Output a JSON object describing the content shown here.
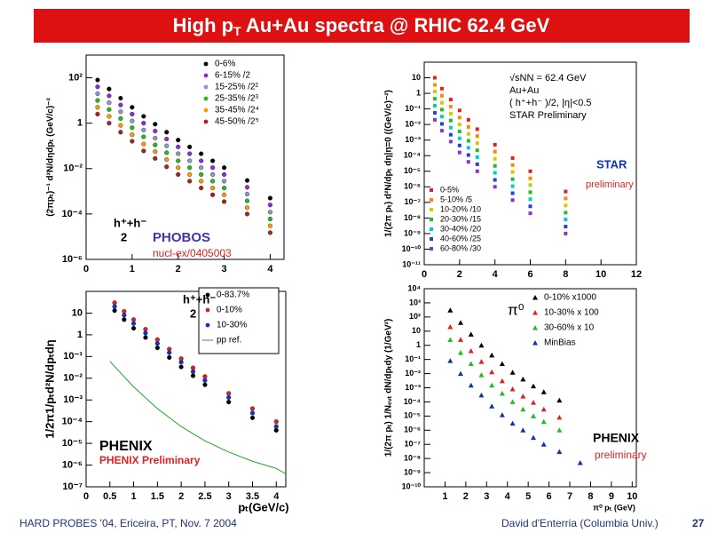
{
  "title": {
    "pre": "High p",
    "sub": "T",
    "post": " Au+Au spectra @ RHIC 62.4 GeV"
  },
  "footer": {
    "left": "HARD PROBES '04, Ericeira, PT, Nov. 7 2004",
    "right": "David d'Enterria (Columbia Univ.)",
    "page": "27"
  },
  "chart_data": [
    {
      "type": "scatter",
      "yscale": "log",
      "marker": "circle",
      "legend": "upper right",
      "ylabel": "(2πpₜ)⁻¹ d²N/dηdpₜ (GeV/c)⁻²",
      "annotations": [
        "h⁺+h⁻",
        "2",
        "PHOBOS",
        "nucl-ex/0405003"
      ],
      "xlim": [
        0,
        4.3
      ],
      "xticks": [
        0,
        1,
        2,
        3,
        4
      ],
      "ylim": [
        1e-06,
        1000
      ],
      "yticks": [
        {
          "value": 100,
          "label": "10²"
        },
        1,
        {
          "value": 0.01,
          "label": "10⁻²"
        },
        {
          "value": 0.0001,
          "label": "10⁻⁴"
        },
        {
          "value": 1e-06,
          "label": "10⁻⁶"
        }
      ],
      "x": [
        0.25,
        0.5,
        0.75,
        1.0,
        1.25,
        1.5,
        1.75,
        2.0,
        2.25,
        2.5,
        2.75,
        3.0,
        3.5,
        4.0
      ],
      "series": [
        {
          "name": "0-6%",
          "color": "#000000",
          "values": [
            80,
            32,
            12.6,
            5,
            2,
            0.9,
            0.4,
            0.18,
            0.09,
            0.045,
            0.022,
            0.011,
            0.003,
            0.0005
          ]
        },
        {
          "name": "6-15%   /2",
          "color": "#8a2be2",
          "values": [
            40,
            16,
            6.3,
            2.5,
            1,
            0.45,
            0.2,
            0.09,
            0.045,
            0.022,
            0.011,
            0.0055,
            0.0015,
            0.00025
          ]
        },
        {
          "name": "15-25% /2²",
          "color": "#8899cc",
          "values": [
            20,
            8,
            3.2,
            1.25,
            0.5,
            0.22,
            0.1,
            0.045,
            0.022,
            0.011,
            0.0055,
            0.0028,
            0.00075,
            0.00012
          ]
        },
        {
          "name": "25-35% /2³",
          "color": "#22bb22",
          "values": [
            10,
            4,
            1.6,
            0.63,
            0.25,
            0.11,
            0.05,
            0.022,
            0.011,
            0.0055,
            0.0028,
            0.0014,
            0.00038,
            6e-05
          ]
        },
        {
          "name": "35-45% /2⁴",
          "color": "#ff9900",
          "values": [
            5,
            2,
            0.8,
            0.31,
            0.12,
            0.056,
            0.025,
            0.011,
            0.0055,
            0.0028,
            0.0014,
            0.0007,
            0.00019,
            3e-05
          ]
        },
        {
          "name": "45-50% /2⁵",
          "color": "#aa2222",
          "values": [
            2.5,
            1,
            0.4,
            0.16,
            0.06,
            0.028,
            0.012,
            0.0055,
            0.0028,
            0.0014,
            0.0007,
            0.00035,
            0.0001,
            1.5e-05
          ]
        }
      ]
    },
    {
      "type": "scatter",
      "yscale": "log",
      "marker": "square",
      "legend": "lower left",
      "ylabel": "1/(2π pₜ)  d²N/dpₜ dη|η=0 ((GeV/c)⁻²)",
      "annotations": [
        "√sNN = 62.4 GeV",
        "Au+Au",
        "( h⁺+h⁻ )/2, |η|<0.5",
        "STAR Preliminary",
        "STAR",
        "preliminary"
      ],
      "xlim": [
        0,
        12
      ],
      "xticks": [
        0,
        2,
        4,
        6,
        8,
        10,
        12
      ],
      "ylim": [
        1e-11,
        100
      ],
      "yticks": [
        10,
        1,
        {
          "value": 0.1,
          "label": "10⁻¹"
        },
        {
          "value": 0.01,
          "label": "10⁻²"
        },
        {
          "value": 0.001,
          "label": "10⁻³"
        },
        {
          "value": 0.0001,
          "label": "10⁻⁴"
        },
        {
          "value": 1e-05,
          "label": "10⁻⁵"
        },
        {
          "value": 1e-06,
          "label": "10⁻⁶"
        },
        {
          "value": 1e-07,
          "label": "10⁻⁷"
        },
        {
          "value": 1e-08,
          "label": "10⁻⁸"
        },
        {
          "value": 1e-09,
          "label": "10⁻⁹"
        },
        {
          "value": 1e-10,
          "label": "10⁻¹⁰"
        },
        {
          "value": 1e-11,
          "label": "10⁻¹¹"
        }
      ],
      "x": [
        0.6,
        1,
        1.5,
        2,
        2.5,
        3,
        4,
        5,
        6,
        8
      ],
      "series": [
        {
          "name": "0-5%",
          "color": "#dd2222",
          "values": [
            10,
            2,
            0.4,
            0.08,
            0.02,
            0.005,
            0.0005,
            7e-05,
            1e-05,
            5e-07
          ]
        },
        {
          "name": "5-10% /5",
          "color": "#ff8800",
          "values": [
            3.5,
            0.7,
            0.14,
            0.028,
            0.007,
            0.0018,
            0.00018,
            2.5e-05,
            3.5e-06,
            1.8e-07
          ]
        },
        {
          "name": "10-20% /10",
          "color": "#cccc00",
          "values": [
            1.3,
            0.25,
            0.05,
            0.01,
            0.0025,
            0.00063,
            6.3e-05,
            9e-06,
            1.3e-06,
            6.3e-08
          ]
        },
        {
          "name": "20-30% /15",
          "color": "#22bb22",
          "values": [
            0.45,
            0.09,
            0.018,
            0.0036,
            0.0009,
            0.00022,
            2.2e-05,
            3.1e-06,
            4.5e-07,
            2.2e-08
          ]
        },
        {
          "name": "30-40% /20",
          "color": "#00cccc",
          "values": [
            0.16,
            0.032,
            0.0063,
            0.0013,
            0.00032,
            8e-05,
            8e-06,
            1.1e-06,
            1.6e-07,
            8e-09
          ]
        },
        {
          "name": "40-60% /25",
          "color": "#2244cc",
          "values": [
            0.056,
            0.011,
            0.0022,
            0.00045,
            0.00011,
            2.8e-05,
            2.8e-06,
            3.9e-07,
            5.6e-08,
            2.8e-09
          ]
        },
        {
          "name": "60-80% /30",
          "color": "#8833cc",
          "values": [
            0.02,
            0.004,
            0.0008,
            0.00016,
            4e-05,
            1e-05,
            1e-06,
            1.4e-07,
            2e-08,
            1e-09
          ]
        }
      ]
    },
    {
      "type": "scatter",
      "yscale": "log",
      "marker": "circle",
      "legend": "upper right",
      "ylabel": "1/2π1/pₜd²N/dpₜdη",
      "xlabel": "pₜ(GeV/c)",
      "annotations": [
        "h⁺+h⁻",
        "2",
        "PHENIX",
        "PHENIX Preliminary"
      ],
      "xlim": [
        0,
        4.2
      ],
      "xticks": [
        0,
        0.5,
        1,
        1.5,
        2,
        2.5,
        3,
        3.5,
        4
      ],
      "ylim": [
        1e-07,
        100
      ],
      "yticks": [
        10,
        1,
        {
          "value": 0.1,
          "label": "10⁻¹"
        },
        {
          "value": 0.01,
          "label": "10⁻²"
        },
        {
          "value": 0.001,
          "label": "10⁻³"
        },
        {
          "value": 0.0001,
          "label": "10⁻⁴"
        },
        {
          "value": 1e-05,
          "label": "10⁻⁵"
        },
        {
          "value": 1e-06,
          "label": "10⁻⁶"
        },
        {
          "value": 1e-07,
          "label": "10⁻⁷"
        }
      ],
      "x": [
        0.6,
        0.8,
        1.0,
        1.25,
        1.5,
        1.75,
        2.0,
        2.25,
        2.5,
        3.0,
        3.5,
        4.0
      ],
      "series": [
        {
          "name": "0-83.7%",
          "color": "#000000",
          "values": [
            13,
            5,
            2,
            0.75,
            0.25,
            0.09,
            0.033,
            0.013,
            0.005,
            0.0008,
            0.00015,
            4e-05
          ]
        },
        {
          "name": "0-10%",
          "color": "#dd2222",
          "values": [
            30,
            12,
            5,
            1.8,
            0.6,
            0.22,
            0.08,
            0.03,
            0.012,
            0.002,
            0.0004,
            0.0001
          ]
        },
        {
          "name": "10-30%",
          "color": "#1133cc",
          "values": [
            20,
            8,
            3.3,
            1.2,
            0.4,
            0.15,
            0.055,
            0.02,
            0.008,
            0.0013,
            0.00025,
            6e-05
          ]
        },
        {
          "name": "pp ref.",
          "color": "#22aa22",
          "style": "line",
          "x": [
            0.5,
            1,
            1.5,
            2,
            2.5,
            3,
            3.5,
            4,
            4.2
          ],
          "values": [
            0.06,
            0.004,
            0.0004,
            6e-05,
            1.3e-05,
            4e-06,
            1.5e-06,
            7e-07,
            4e-07
          ]
        }
      ]
    },
    {
      "type": "scatter",
      "yscale": "log",
      "marker": "triangle",
      "legend": "upper right",
      "ylabel": "1/(2π pₜ) 1/Nₑᵥₜ dN/dpₜdy (1/GeV²)",
      "xlabel": "π⁰ pₜ (GeV)",
      "annotations": [
        "π⁰",
        "PHENIX",
        "preliminary"
      ],
      "xlim": [
        0,
        10.2
      ],
      "xticks": [
        1,
        2,
        3,
        4,
        5,
        6,
        7,
        8,
        9,
        10
      ],
      "ylim": [
        1e-10,
        10000
      ],
      "yticks": [
        {
          "value": 10000,
          "label": "10⁴"
        },
        {
          "value": 1000,
          "label": "10³"
        },
        {
          "value": 100,
          "label": "10²"
        },
        10,
        1,
        {
          "value": 0.1,
          "label": "10⁻¹"
        },
        {
          "value": 0.01,
          "label": "10⁻²"
        },
        {
          "value": 0.001,
          "label": "10⁻³"
        },
        {
          "value": 0.0001,
          "label": "10⁻⁴"
        },
        {
          "value": 1e-05,
          "label": "10⁻⁵"
        },
        {
          "value": 1e-06,
          "label": "10⁻⁶"
        },
        {
          "value": 1e-07,
          "label": "10⁻⁷"
        },
        {
          "value": 1e-08,
          "label": "10⁻⁸"
        },
        {
          "value": 1e-09,
          "label": "10⁻⁹"
        },
        {
          "value": 1e-10,
          "label": "10⁻¹⁰"
        }
      ],
      "x": [
        1.25,
        1.75,
        2.25,
        2.75,
        3.25,
        3.75,
        4.25,
        4.75,
        5.25,
        5.75,
        6.5,
        7.5
      ],
      "series": [
        {
          "name": "0-10% x1000",
          "color": "#000000",
          "values": [
            300,
            40,
            6,
            1,
            0.2,
            0.05,
            0.012,
            0.004,
            0.0013,
            0.0005,
            0.00013,
            null
          ]
        },
        {
          "name": "10-30% x 100",
          "color": "#dd2222",
          "values": [
            20,
            2.5,
            0.4,
            0.07,
            0.013,
            0.003,
            0.0008,
            0.00025,
            9e-05,
            3e-05,
            8e-06,
            null
          ]
        },
        {
          "name": "30-60% x 10",
          "color": "#22bb22",
          "values": [
            2.5,
            0.3,
            0.05,
            0.008,
            0.0015,
            0.0004,
            0.0001,
            3e-05,
            1e-05,
            4e-06,
            1e-06,
            null
          ]
        },
        {
          "name": "MinBias",
          "color": "#1133aa",
          "values": [
            0.08,
            0.01,
            0.0015,
            0.0003,
            5e-05,
            1.2e-05,
            3e-06,
            1e-06,
            3e-07,
            1e-07,
            3e-08,
            5e-09
          ]
        }
      ]
    }
  ]
}
